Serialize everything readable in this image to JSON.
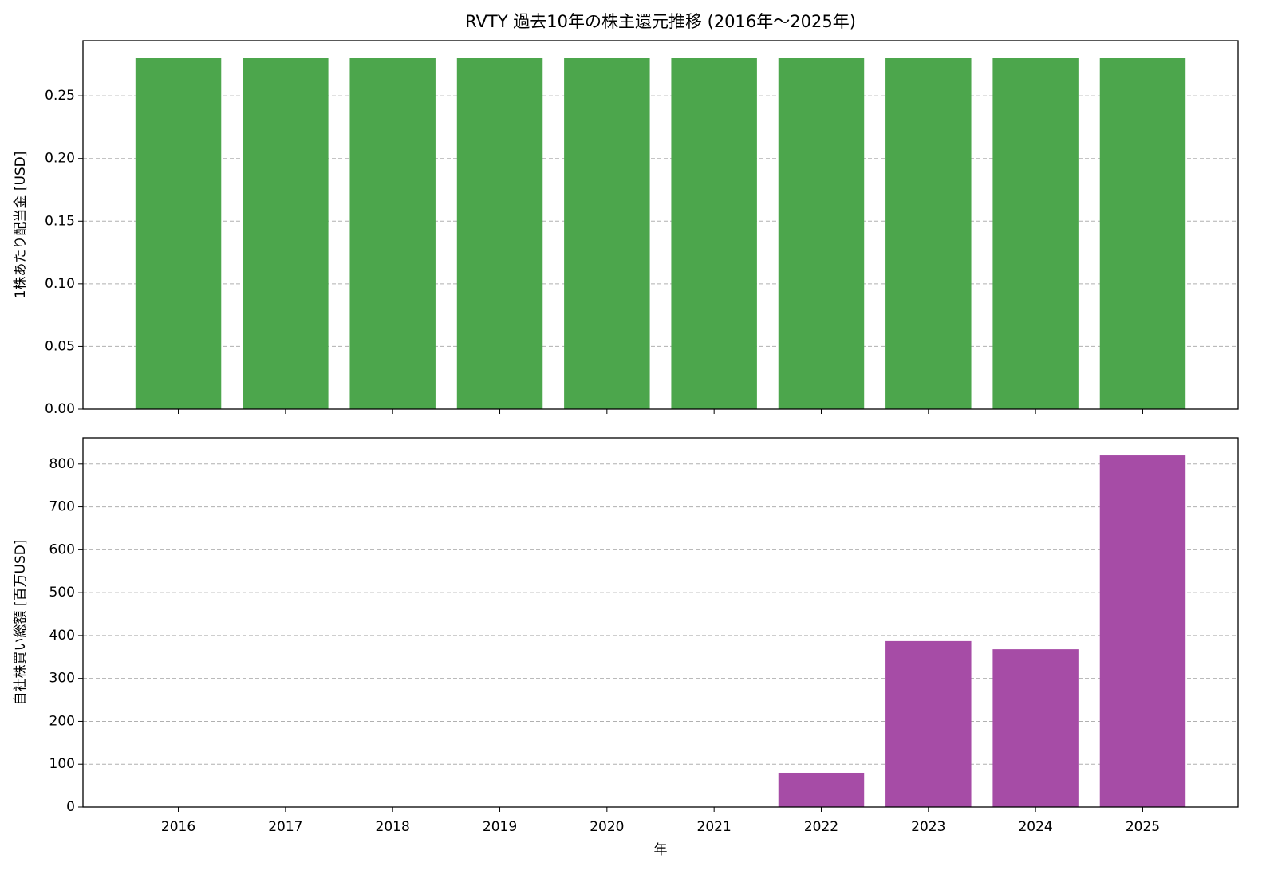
{
  "chart_data": [
    {
      "type": "bar",
      "title": "RVTY 過去10年の株主還元推移 (2016年～2025年)",
      "y_label": "1株あたり配当金 [USD]",
      "categories": [
        null,
        null,
        null,
        null,
        null,
        null,
        null,
        null,
        null,
        null
      ],
      "values": [
        0.28,
        0.28,
        0.28,
        0.28,
        0.28,
        0.28,
        0.28,
        0.28,
        0.28,
        0.28
      ],
      "color": "#4ca64c",
      "ylim": [
        0,
        0.294
      ],
      "yticks": [
        {
          "value": 0,
          "label": "0.00"
        },
        {
          "value": 0.05,
          "label": "0.05"
        },
        {
          "value": 0.1,
          "label": "0.10"
        },
        {
          "value": 0.15,
          "label": "0.15"
        },
        {
          "value": 0.2,
          "label": "0.20"
        },
        {
          "value": 0.25,
          "label": "0.25"
        }
      ],
      "grid": true
    },
    {
      "type": "bar",
      "y_label": "自社株買い総額 [百万USD]",
      "x_label": "年",
      "categories": [
        "2016",
        "2017",
        "2018",
        "2019",
        "2020",
        "2021",
        "2022",
        "2023",
        "2024",
        "2025"
      ],
      "values": [
        0,
        0,
        0,
        0,
        0,
        0,
        80,
        387,
        368,
        820
      ],
      "color": "#a64ca6",
      "ylim": [
        0,
        861
      ],
      "yticks": [
        0,
        100,
        200,
        300,
        400,
        500,
        600,
        700,
        800
      ],
      "grid": true
    }
  ]
}
